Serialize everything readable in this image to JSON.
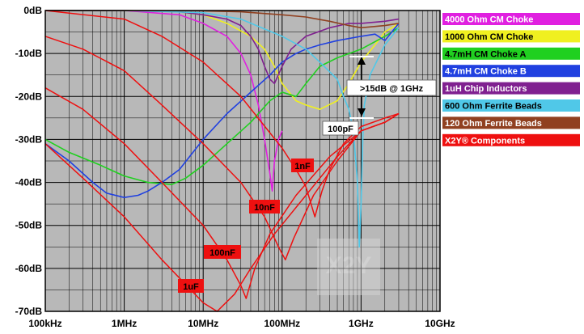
{
  "chart_data": {
    "type": "line",
    "title": "",
    "xlabel": "",
    "ylabel": "",
    "x_scale": "log",
    "xlim": [
      "100kHz",
      "10GHz"
    ],
    "ylim": [
      -70,
      0
    ],
    "grid": true,
    "legend_position": "right",
    "x_tick_labels": [
      "100kHz",
      "1MHz",
      "10MHz",
      "100MHz",
      "1GHz",
      "10GHz"
    ],
    "y_tick_labels": [
      "0dB",
      "-10dB",
      "-20dB",
      "-30dB",
      "-40dB",
      "-50dB",
      "-60dB",
      "-70dB"
    ],
    "series": [
      {
        "name": "4000 Ohm CM Choke",
        "color": "#e020e0",
        "label_color": "#ffffff",
        "x_hz": [
          100000.0,
          1000000.0,
          5000000.0,
          10000000.0,
          20000000.0,
          30000000.0,
          40000000.0,
          50000000.0,
          60000000.0,
          70000000.0,
          75000000.0,
          80000000.0,
          90000000.0,
          100000000.0
        ],
        "y_db": [
          0,
          0,
          -1,
          -3,
          -6,
          -10,
          -15,
          -22,
          -30,
          -38,
          -42,
          -35,
          -30,
          -28
        ]
      },
      {
        "name": "1000 Ohm CM Choke",
        "color": "#f0f020",
        "label_color": "#000000",
        "x_hz": [
          100000.0,
          1000000.0,
          5000000.0,
          10000000.0,
          20000000.0,
          40000000.0,
          60000000.0,
          80000000.0,
          100000000.0,
          150000000.0,
          200000000.0,
          300000000.0,
          500000000.0,
          700000000.0,
          1000000000.0,
          1500000000.0,
          2000000000.0,
          3000000000.0
        ],
        "y_db": [
          0,
          0,
          -0.3,
          -1,
          -3,
          -6,
          -9,
          -13,
          -17,
          -21,
          -22,
          -23,
          -21,
          -17,
          -12,
          -8,
          -5,
          -3
        ]
      },
      {
        "name": "4.7mH CM Choke A",
        "color": "#20d020",
        "label_color": "#000000",
        "x_hz": [
          100000.0,
          200000.0,
          500000.0,
          1000000.0,
          2000000.0,
          4000000.0,
          6000000.0,
          10000000.0,
          20000000.0,
          40000000.0,
          70000000.0,
          100000000.0,
          150000000.0,
          200000000.0,
          300000000.0,
          500000000.0,
          1000000000.0,
          2000000000.0,
          3000000000.0
        ],
        "y_db": [
          -30,
          -33,
          -36,
          -38.5,
          -40,
          -40.5,
          -39,
          -36,
          -31,
          -26,
          -21,
          -19,
          -20,
          -17,
          -13,
          -11,
          -9,
          -6,
          -4
        ]
      },
      {
        "name": "4.7mH CM Choke B",
        "color": "#2040e0",
        "label_color": "#ffffff",
        "x_hz": [
          100000.0,
          200000.0,
          400000.0,
          600000.0,
          1000000.0,
          1500000.0,
          2000000.0,
          3000000.0,
          5000000.0,
          10000000.0,
          20000000.0,
          40000000.0,
          70000000.0,
          100000000.0,
          150000000.0,
          200000000.0,
          300000000.0,
          500000000.0,
          1000000000.0,
          1500000000.0,
          2000000000.0,
          3000000000.0
        ],
        "y_db": [
          -31,
          -35,
          -40,
          -42.5,
          -43.5,
          -43,
          -42,
          -40,
          -37,
          -30,
          -24,
          -19,
          -15,
          -12,
          -10,
          -9,
          -8,
          -7,
          -6,
          -5.5,
          -7,
          -3
        ]
      },
      {
        "name": "1uH Chip Inductors",
        "color": "#802090",
        "label_color": "#ffffff",
        "x_hz": [
          100000.0,
          1000000.0,
          5000000.0,
          10000000.0,
          20000000.0,
          30000000.0,
          40000000.0,
          50000000.0,
          60000000.0,
          70000000.0,
          80000000.0,
          100000000.0,
          130000000.0,
          200000000.0,
          400000000.0,
          700000000.0,
          1000000000.0,
          2000000000.0,
          3000000000.0
        ],
        "y_db": [
          0,
          0,
          -0.3,
          -1,
          -2,
          -3.5,
          -6,
          -9,
          -13,
          -16,
          -17,
          -13,
          -9,
          -6,
          -4,
          -3,
          -3,
          -2.5,
          -2
        ]
      },
      {
        "name": "600 Ohm Ferrite Beads",
        "color": "#50c8e8",
        "label_color": "#000000",
        "x_hz": [
          100000.0,
          1000000.0,
          10000000.0,
          30000000.0,
          100000000.0,
          200000000.0,
          300000000.0,
          500000000.0,
          600000000.0,
          700000000.0,
          800000000.0,
          900000000.0,
          950000000.0,
          1000000000.0,
          1050000000.0,
          1100000000.0,
          1300000000.0,
          2000000000.0,
          3000000000.0
        ],
        "y_db": [
          0,
          0,
          -0.5,
          -2,
          -6,
          -9,
          -12,
          -16,
          -20,
          -23,
          -28,
          -40,
          -55,
          -45,
          -30,
          -22,
          -15,
          -8,
          -4
        ]
      },
      {
        "name": "120 Ohm Ferrite Beads",
        "color": "#904020",
        "label_color": "#ffffff",
        "x_hz": [
          100000.0,
          1000000.0,
          10000000.0,
          30000000.0,
          100000000.0,
          200000000.0,
          400000000.0,
          700000000.0,
          1000000000.0,
          2000000000.0,
          3000000000.0
        ],
        "y_db": [
          0,
          0,
          -0.1,
          -0.3,
          -1,
          -1.5,
          -2.5,
          -3.5,
          -4,
          -3.5,
          -3
        ]
      },
      {
        "name": "X2Y® Components",
        "color": "#ee1010",
        "label_color": "#ffffff"
      }
    ],
    "x2y_curves": [
      {
        "label": "1uF",
        "x_hz": [
          100000.0,
          300000.0,
          1000000.0,
          3000000.0,
          10000000.0,
          15000000.0,
          25000000.0,
          40000000.0,
          80000000.0,
          200000000.0,
          500000000.0,
          1000000000.0,
          2000000000.0,
          3000000000.0
        ],
        "y_db": [
          -31,
          -39,
          -48,
          -58,
          -68,
          -70,
          -66,
          -60,
          -52,
          -43,
          -34,
          -28,
          -26,
          -24
        ]
      },
      {
        "label": "100nF",
        "x_hz": [
          100000.0,
          300000.0,
          1000000.0,
          3000000.0,
          10000000.0,
          20000000.0,
          30000000.0,
          35000000.0,
          45000000.0,
          70000000.0,
          150000000.0,
          400000000.0,
          1000000000.0,
          2000000000.0,
          3000000000.0
        ],
        "y_db": [
          -18,
          -23,
          -31,
          -40,
          -50,
          -58,
          -64,
          -67,
          -60,
          -52,
          -43,
          -34,
          -28,
          -26,
          -24
        ]
      },
      {
        "label": "10nF",
        "x_hz": [
          100000.0,
          300000.0,
          1000000.0,
          3000000.0,
          10000000.0,
          30000000.0,
          60000000.0,
          90000000.0,
          110000000.0,
          140000000.0,
          250000000.0,
          500000000.0,
          1000000000.0,
          2000000000.0,
          3000000000.0
        ],
        "y_db": [
          -6,
          -9,
          -14,
          -22,
          -31,
          -40,
          -48,
          -55,
          -58,
          -53,
          -43,
          -35,
          -28,
          -26,
          -24
        ]
      },
      {
        "label": "1nF",
        "x_hz": [
          100000.0,
          1000000.0,
          3000000.0,
          10000000.0,
          30000000.0,
          100000000.0,
          150000000.0,
          200000000.0,
          260000000.0,
          320000000.0,
          400000000.0,
          600000000.0,
          1000000000.0,
          2000000000.0,
          3000000000.0
        ],
        "y_db": [
          0,
          -2,
          -6,
          -12,
          -20,
          -32,
          -37,
          -41,
          -48,
          -42,
          -37,
          -31,
          -27,
          -25,
          -24
        ]
      }
    ],
    "annotations": [
      ">15dB @ 1GHz",
      "100pF",
      "1nF",
      "10nF",
      "100nF",
      "1uF"
    ],
    "watermark": "X2Y"
  }
}
